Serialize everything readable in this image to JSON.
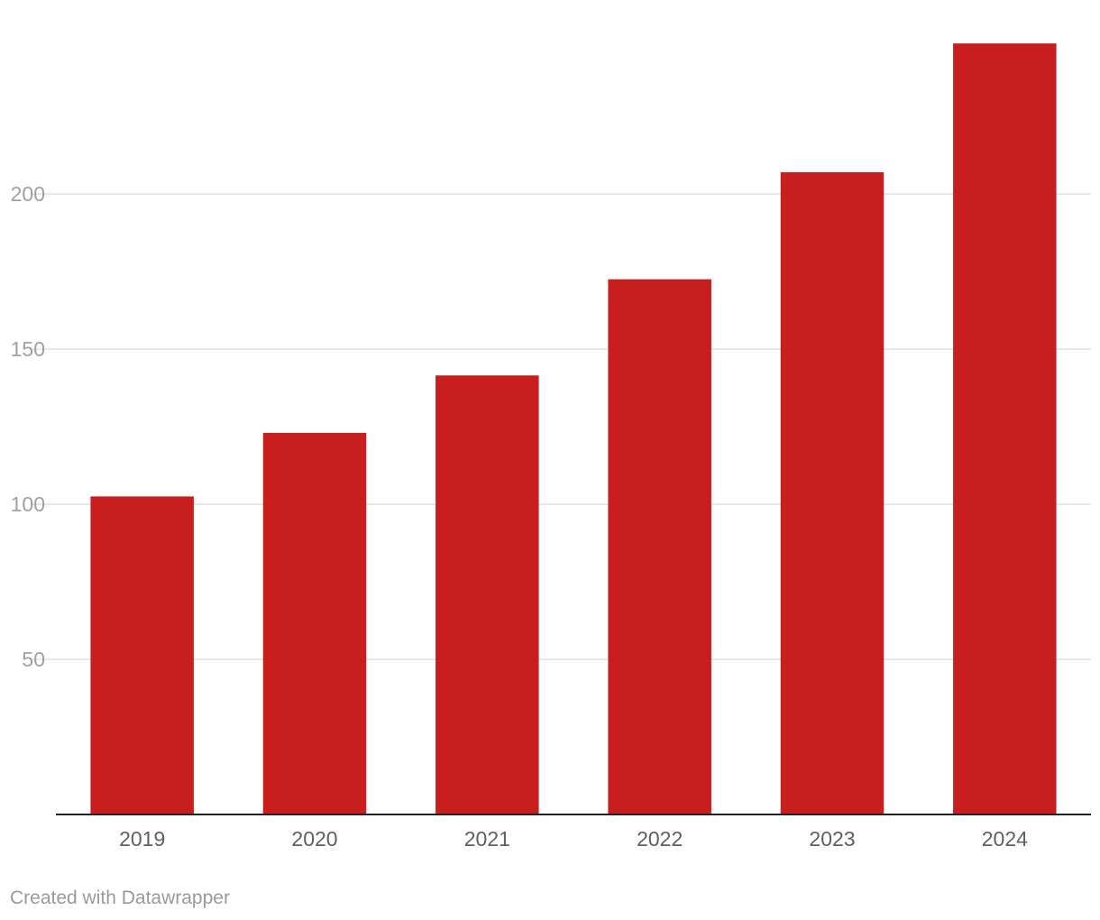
{
  "chart_data": {
    "type": "bar",
    "title": "",
    "xlabel": "",
    "ylabel": "",
    "categories": [
      "2019",
      "2020",
      "2021",
      "2022",
      "2023",
      "2024"
    ],
    "values": [
      102.5,
      123,
      141.5,
      172.5,
      207,
      248.5
    ],
    "ylim": [
      0,
      250
    ],
    "yticks": [
      50,
      100,
      150,
      200
    ],
    "grid": true,
    "bar_color": "#c81e1e"
  },
  "footer": {
    "credit": "Created with Datawrapper"
  }
}
